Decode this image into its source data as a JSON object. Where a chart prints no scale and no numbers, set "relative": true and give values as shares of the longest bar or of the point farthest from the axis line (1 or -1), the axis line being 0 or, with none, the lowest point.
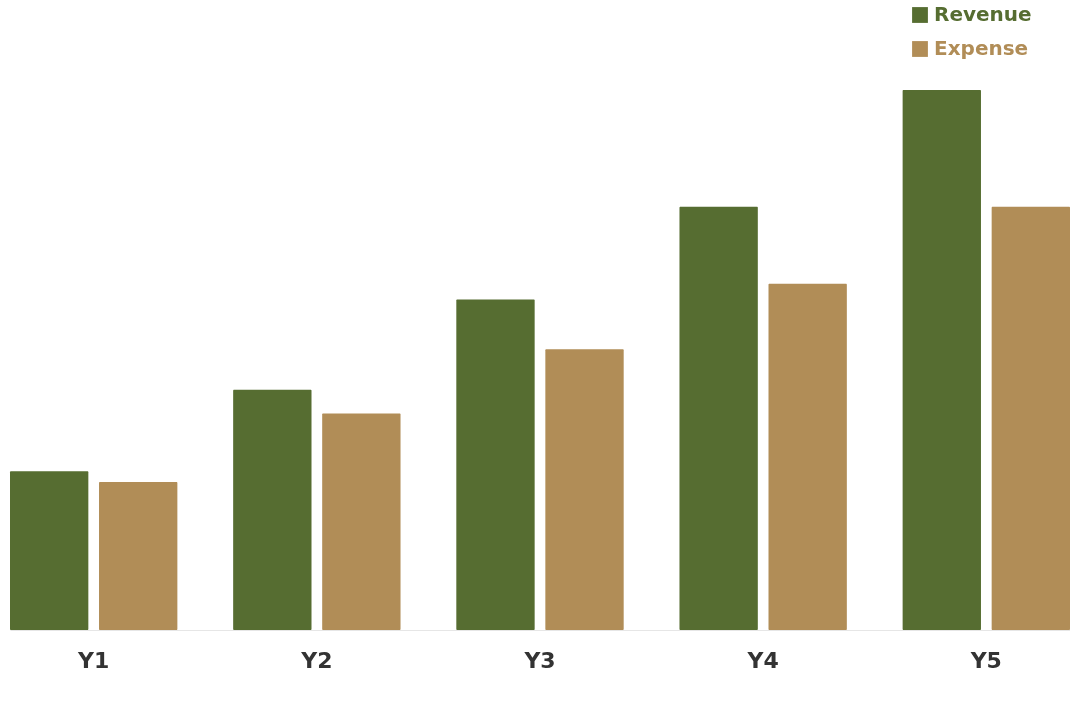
{
  "chart_data": {
    "type": "bar",
    "relative": true,
    "categories": [
      "Y1",
      "Y2",
      "Y3",
      "Y4",
      "Y5"
    ],
    "legend": "top right",
    "series": [
      {
        "name": "Revenue",
        "color": "#566d31",
        "values": [
          0.294,
          0.445,
          0.612,
          0.784,
          1
        ]
      },
      {
        "name": "Expense",
        "color": "#b18d57",
        "values": [
          0.274,
          0.401,
          0.52,
          0.641,
          0.784
        ]
      }
    ]
  }
}
